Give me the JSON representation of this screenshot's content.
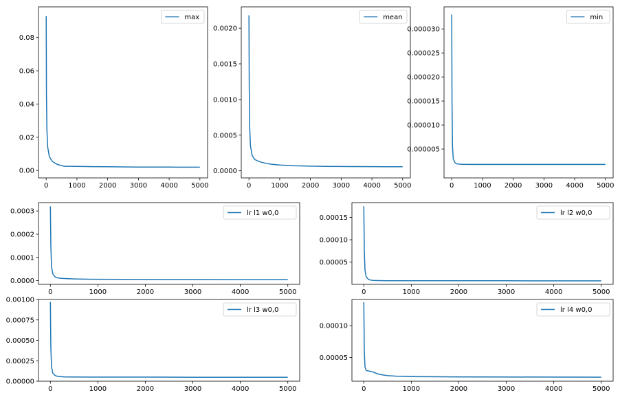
{
  "chart_data": [
    {
      "type": "line",
      "series": [
        {
          "name": "max",
          "x": [
            0,
            10,
            25,
            50,
            100,
            150,
            200,
            300,
            400,
            500,
            600,
            800,
            1000,
            1500,
            2000,
            2500,
            3000,
            3500,
            4000,
            4500,
            5000
          ],
          "y": [
            0.093,
            0.045,
            0.024,
            0.014,
            0.0085,
            0.0068,
            0.0055,
            0.0042,
            0.0034,
            0.0029,
            0.0025,
            0.0025,
            0.0024,
            0.0023,
            0.0022,
            0.0021,
            0.00205,
            0.002,
            0.00198,
            0.00196,
            0.00195
          ]
        }
      ],
      "legend": "top-right",
      "xlim": [
        -250,
        5250
      ],
      "ylim": [
        -0.0045,
        0.0985
      ],
      "xticks": [
        0,
        1000,
        2000,
        3000,
        4000,
        5000
      ],
      "xtick_labels": [
        "0",
        "1000",
        "2000",
        "3000",
        "4000",
        "5000"
      ],
      "yticks": [
        0.0,
        0.02,
        0.04,
        0.06,
        0.08
      ],
      "ytick_labels": [
        "0.00",
        "0.02",
        "0.04",
        "0.06",
        "0.08"
      ]
    },
    {
      "type": "line",
      "series": [
        {
          "name": "mean",
          "x": [
            0,
            10,
            25,
            50,
            100,
            150,
            200,
            300,
            400,
            600,
            800,
            1000,
            1500,
            2000,
            2500,
            3000,
            3500,
            4000,
            4500,
            5000
          ],
          "y": [
            0.00218,
            0.0012,
            0.0006,
            0.00035,
            0.00022,
            0.00018,
            0.000155,
            0.000135,
            0.00012,
            0.0001,
            8.8e-05,
            8e-05,
            7e-05,
            6.5e-05,
            6.2e-05,
            6e-05,
            5.9e-05,
            5.8e-05,
            5.7e-05,
            5.6e-05
          ]
        }
      ],
      "legend": "top-right",
      "xlim": [
        -250,
        5250
      ],
      "ylim": [
        -0.0001,
        0.0023
      ],
      "xticks": [
        0,
        1000,
        2000,
        3000,
        4000,
        5000
      ],
      "xtick_labels": [
        "0",
        "1000",
        "2000",
        "3000",
        "4000",
        "5000"
      ],
      "yticks": [
        0.0,
        0.0005,
        0.001,
        0.0015,
        0.002
      ],
      "ytick_labels": [
        "0.0000",
        "0.0005",
        "0.0010",
        "0.0015",
        "0.0020"
      ]
    },
    {
      "type": "line",
      "series": [
        {
          "name": "min",
          "x": [
            0,
            10,
            25,
            50,
            100,
            150,
            200,
            300,
            500,
            1000,
            2000,
            3000,
            4000,
            5000
          ],
          "y": [
            3.3e-05,
            1.5e-05,
            5.5e-06,
            3e-06,
            2.2e-06,
            1.95e-06,
            1.9e-06,
            1.85e-06,
            1.8e-06,
            1.8e-06,
            1.8e-06,
            1.8e-06,
            1.8e-06,
            1.8e-06
          ]
        }
      ],
      "legend": "top-right",
      "xlim": [
        -250,
        5250
      ],
      "ylim": [
        -1e-06,
        3.46e-05
      ],
      "xticks": [
        0,
        1000,
        2000,
        3000,
        4000,
        5000
      ],
      "xtick_labels": [
        "0",
        "1000",
        "2000",
        "3000",
        "4000",
        "5000"
      ],
      "yticks": [
        5e-06,
        1e-05,
        1.5e-05,
        2e-05,
        2.5e-05,
        3e-05
      ],
      "ytick_labels": [
        "0.000005",
        "0.000010",
        "0.000015",
        "0.000020",
        "0.000025",
        "0.000030"
      ]
    },
    {
      "type": "line",
      "series": [
        {
          "name": "lr l1 w0,0",
          "x": [
            0,
            10,
            25,
            50,
            100,
            150,
            200,
            300,
            500,
            700,
            1000,
            1500,
            2000,
            3000,
            4000,
            5000
          ],
          "y": [
            0.00032,
            0.00015,
            6e-05,
            3e-05,
            1.6e-05,
            1.2e-05,
            1.05e-05,
            9e-06,
            7.5e-06,
            6.5e-06,
            5.8e-06,
            5.2e-06,
            4.9e-06,
            4.6e-06,
            4.5e-06,
            4.4e-06
          ]
        }
      ],
      "legend": "top-right",
      "xlim": [
        -250,
        5250
      ],
      "ylim": [
        -1.6e-05,
        0.000336
      ],
      "xticks": [
        0,
        1000,
        2000,
        3000,
        4000,
        5000
      ],
      "xtick_labels": [
        "0",
        "1000",
        "2000",
        "3000",
        "4000",
        "5000"
      ],
      "yticks": [
        0.0,
        0.0001,
        0.0002,
        0.0003
      ],
      "ytick_labels": [
        "0.0000",
        "0.0001",
        "0.0002",
        "0.0003"
      ]
    },
    {
      "type": "line",
      "series": [
        {
          "name": "lr l2 w0,0",
          "x": [
            0,
            10,
            25,
            50,
            100,
            150,
            200,
            300,
            500,
            1000,
            2000,
            3000,
            4000,
            5000
          ],
          "y": [
            0.000175,
            7.5e-05,
            3.2e-05,
            1.7e-05,
            1.1e-05,
            9.5e-06,
            8.8e-06,
            8.5e-06,
            8.3e-06,
            8.2e-06,
            8.1e-06,
            8.1e-06,
            8e-06,
            8e-06
          ]
        }
      ],
      "legend": "top-right",
      "xlim": [
        -250,
        5250
      ],
      "ylim": [
        1e-07,
        0.0001832
      ],
      "xticks": [
        0,
        1000,
        2000,
        3000,
        4000,
        5000
      ],
      "xtick_labels": [
        "0",
        "1000",
        "2000",
        "3000",
        "4000",
        "5000"
      ],
      "yticks": [
        5e-05,
        0.0001,
        0.00015
      ],
      "ytick_labels": [
        "0.00005",
        "0.00010",
        "0.00015"
      ]
    },
    {
      "type": "line",
      "series": [
        {
          "name": "lr l3 w0,0",
          "x": [
            0,
            10,
            25,
            50,
            100,
            150,
            200,
            300,
            500,
            1000,
            2000,
            3000,
            4000,
            5000
          ],
          "y": [
            0.00097,
            0.0004,
            0.00018,
            0.0001,
            7e-05,
            6e-05,
            5.6e-05,
            5.3e-05,
            5.1e-05,
            5e-05,
            5e-05,
            4.9e-05,
            4.9e-05,
            4.9e-05
          ]
        }
      ],
      "legend": "top-right",
      "xlim": [
        -250,
        5250
      ],
      "ylim": [
        0.0,
        0.001
      ],
      "xticks": [
        0,
        1000,
        2000,
        3000,
        4000,
        5000
      ],
      "xtick_labels": [
        "0",
        "1000",
        "2000",
        "3000",
        "4000",
        "5000"
      ],
      "yticks": [
        0.0,
        0.00025,
        0.0005,
        0.00075,
        0.001
      ],
      "ytick_labels": [
        "0.00000",
        "0.00025",
        "0.00050",
        "0.00075",
        "0.00100"
      ]
    },
    {
      "type": "line",
      "series": [
        {
          "name": "lr l4 w0,0",
          "x": [
            0,
            10,
            25,
            50,
            75,
            100,
            150,
            200,
            300,
            400,
            500,
            700,
            1000,
            1500,
            2000,
            3000,
            4000,
            5000
          ],
          "y": [
            0.000137,
            6e-05,
            3.5e-05,
            3e-05,
            2.9e-05,
            2.88e-05,
            2.82e-05,
            2.7e-05,
            2.4e-05,
            2.25e-05,
            2.15e-05,
            2.05e-05,
            2e-05,
            1.97e-05,
            1.95e-05,
            1.93e-05,
            1.92e-05,
            1.91e-05
          ]
        }
      ],
      "legend": "top-right",
      "xlim": [
        -250,
        5250
      ],
      "ylim": [
        1.27e-05,
        0.0001413
      ],
      "xticks": [
        0,
        1000,
        2000,
        3000,
        4000,
        5000
      ],
      "xtick_labels": [
        "0",
        "1000",
        "2000",
        "3000",
        "4000",
        "5000"
      ],
      "yticks": [
        5e-05,
        0.0001
      ],
      "ytick_labels": [
        "0.00005",
        "0.00010"
      ]
    }
  ],
  "colors": {
    "line": "#1f77b4",
    "axes": "#000000",
    "legend_border": "#cccccc",
    "background": "#ffffff"
  }
}
